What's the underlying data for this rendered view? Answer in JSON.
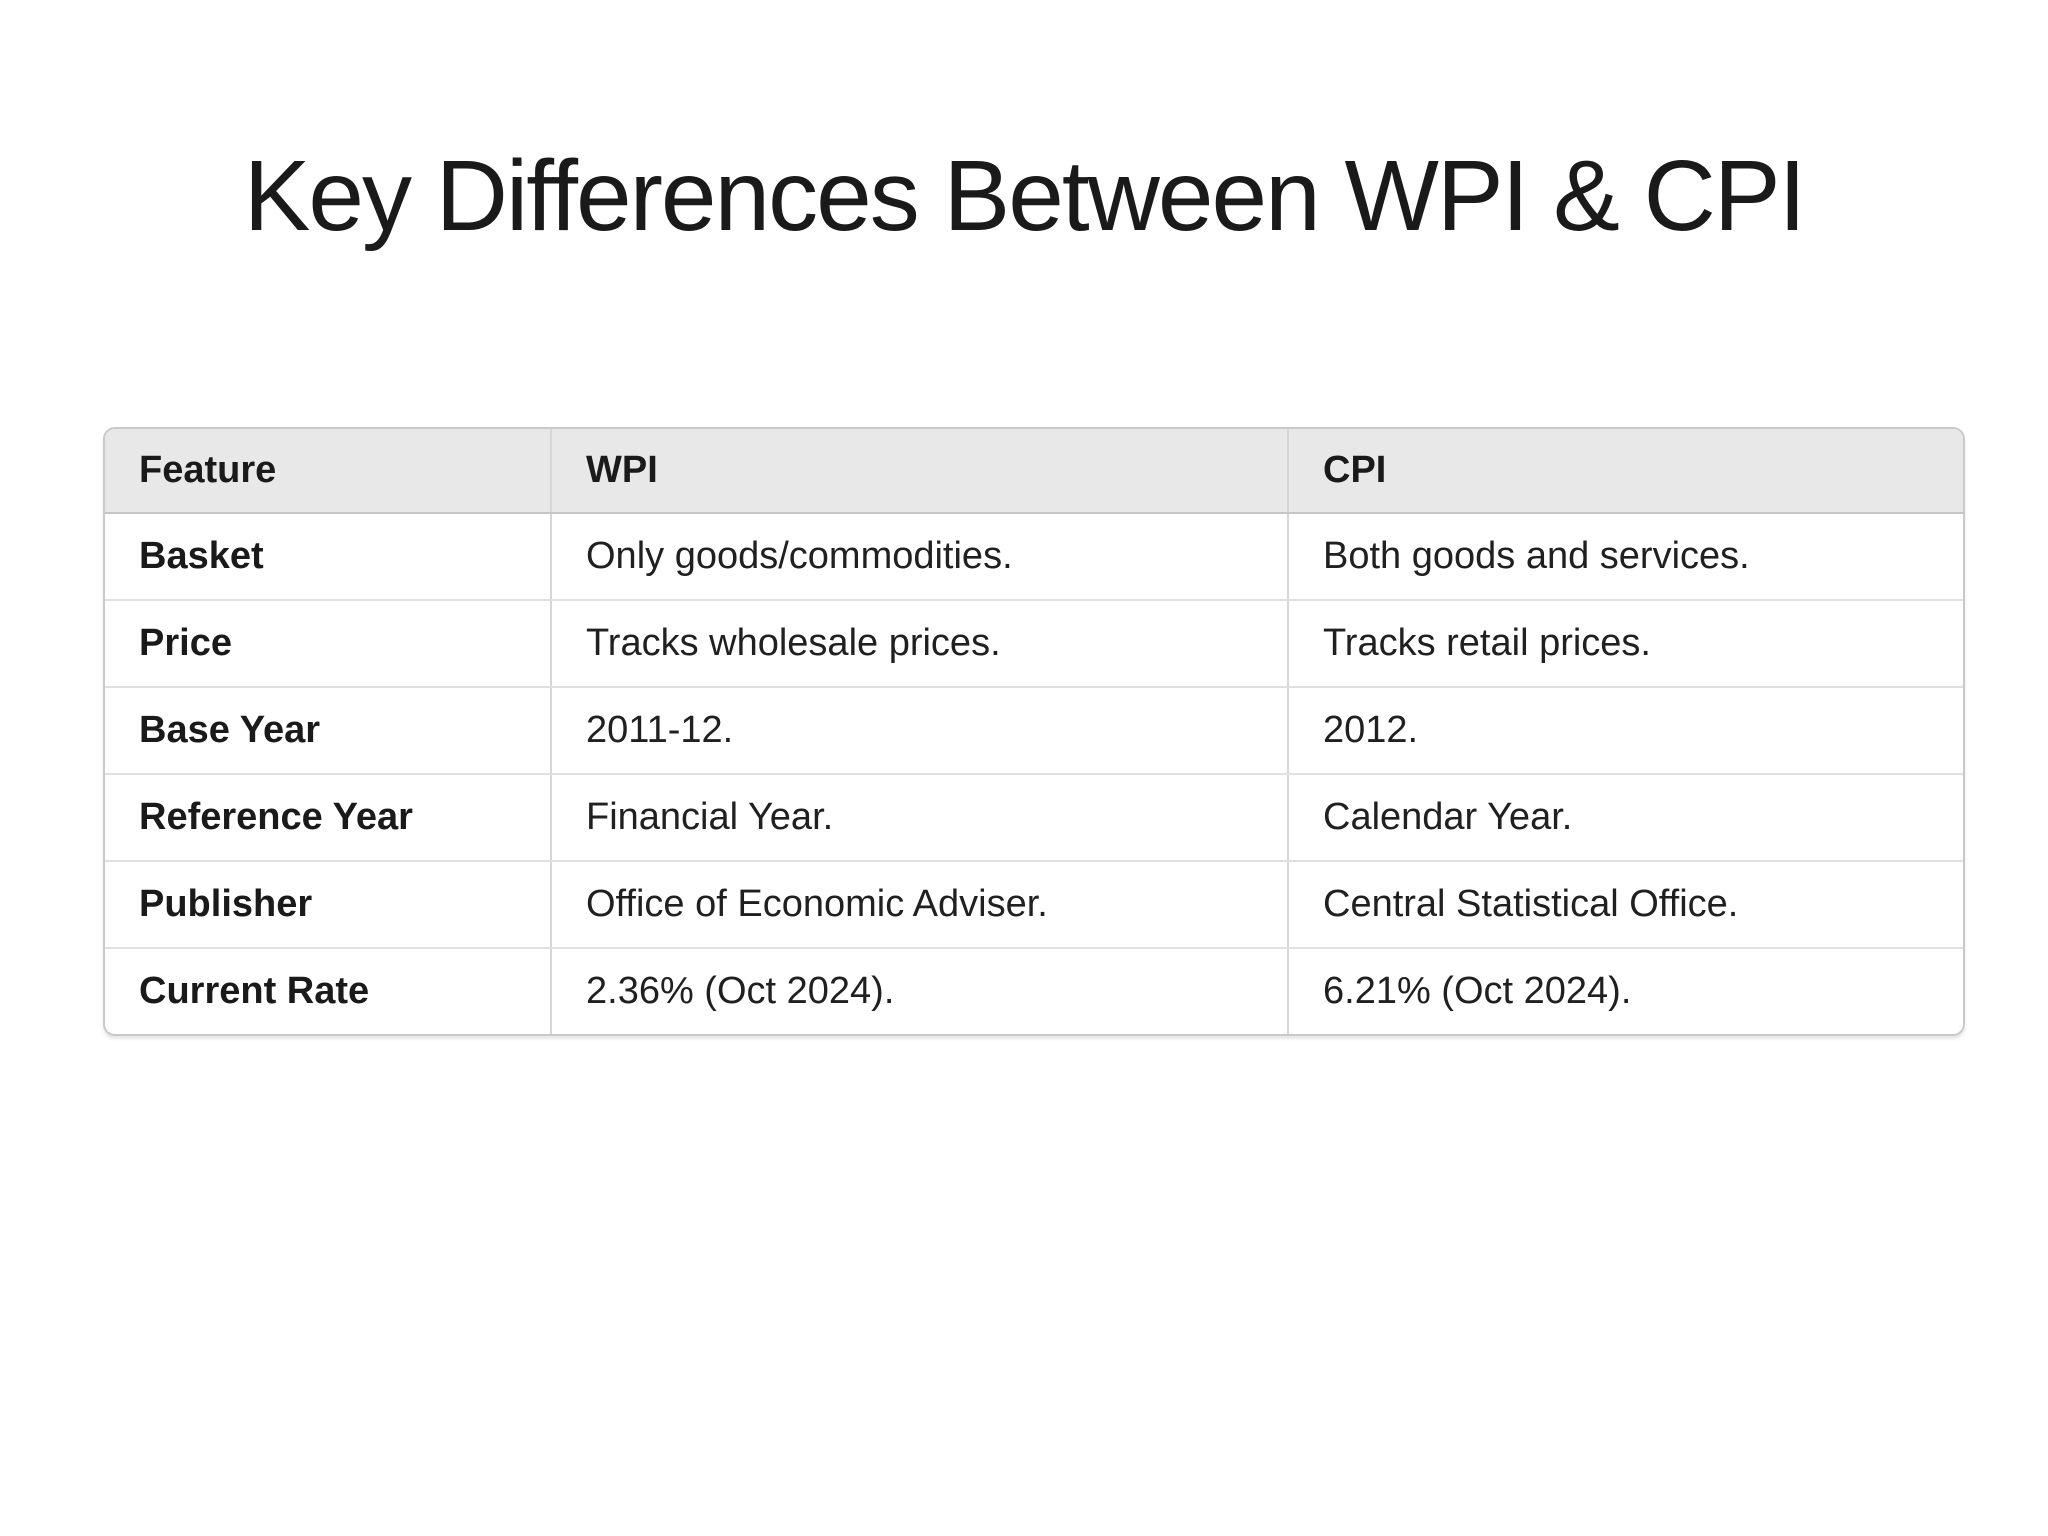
{
  "title": "Key Differences Between WPI & CPI",
  "table": {
    "columns": [
      "Feature",
      "WPI",
      "CPI"
    ],
    "rows": [
      {
        "feature": "Basket",
        "wpi": "Only goods/commodities.",
        "cpi": "Both goods and services."
      },
      {
        "feature": "Price",
        "wpi": "Tracks wholesale prices.",
        "cpi": "Tracks retail prices."
      },
      {
        "feature": "Base Year",
        "wpi": "2011-12.",
        "cpi": "2012."
      },
      {
        "feature": "Reference Year",
        "wpi": "Financial Year.",
        "cpi": "Calendar Year."
      },
      {
        "feature": "Publisher",
        "wpi": "Office of Economic Adviser.",
        "cpi": "Central Statistical Office."
      },
      {
        "feature": "Current Rate",
        "wpi": "2.36% (Oct 2024).",
        "cpi": "6.21% (Oct 2024)."
      }
    ]
  },
  "colors": {
    "background": "#ffffff",
    "header_bg": "#e8e8e8",
    "outer_border": "#c9c9c9",
    "column_divider": "#d6d6d6",
    "row_divider": "#e0e0e0",
    "header_divider": "#c6c6c6",
    "text": "#1a1a1a"
  }
}
